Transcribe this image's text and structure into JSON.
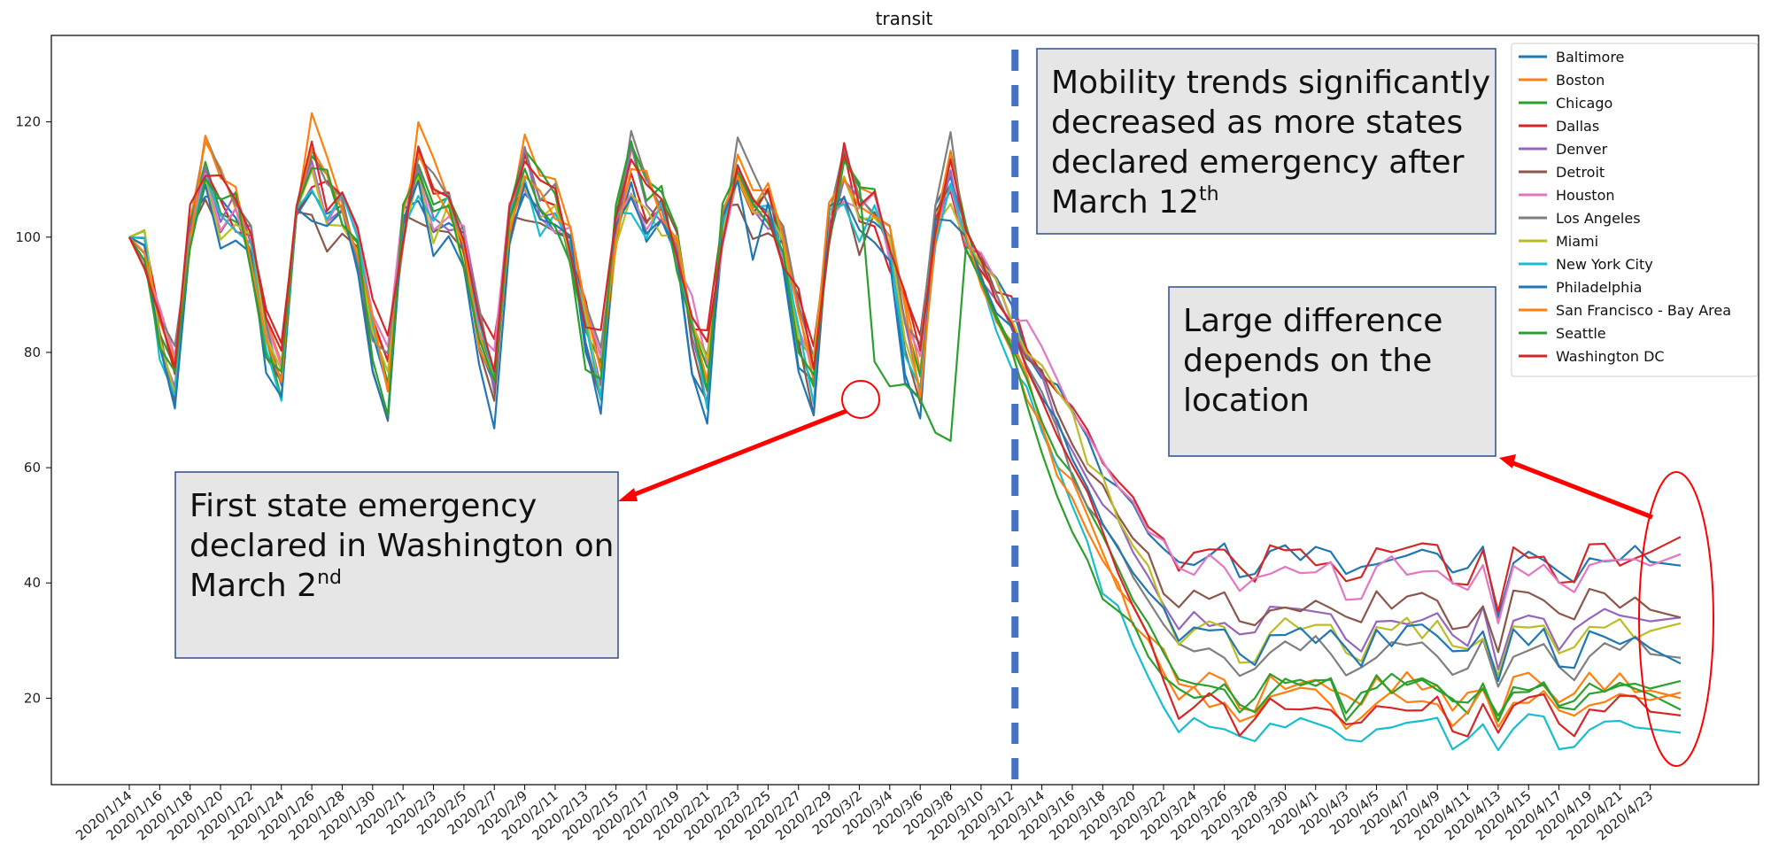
{
  "chart_data": {
    "type": "line",
    "title": "transit",
    "xlabel": "",
    "ylabel": "",
    "ylim": [
      5,
      135
    ],
    "yticks": [
      20,
      40,
      60,
      80,
      100,
      120
    ],
    "legend_position": "top-right",
    "grid": false,
    "x": [
      "2020/1/14",
      "2020/1/15",
      "2020/1/16",
      "2020/1/17",
      "2020/1/18",
      "2020/1/19",
      "2020/1/20",
      "2020/1/21",
      "2020/1/22",
      "2020/1/23",
      "2020/1/24",
      "2020/1/25",
      "2020/1/26",
      "2020/1/27",
      "2020/1/28",
      "2020/1/29",
      "2020/1/30",
      "2020/1/31",
      "2020/2/1",
      "2020/2/2",
      "2020/2/3",
      "2020/2/4",
      "2020/2/5",
      "2020/2/6",
      "2020/2/7",
      "2020/2/8",
      "2020/2/9",
      "2020/2/10",
      "2020/2/11",
      "2020/2/12",
      "2020/2/13",
      "2020/2/14",
      "2020/2/15",
      "2020/2/16",
      "2020/2/17",
      "2020/2/18",
      "2020/2/19",
      "2020/2/20",
      "2020/2/21",
      "2020/2/22",
      "2020/2/23",
      "2020/2/24",
      "2020/2/25",
      "2020/2/26",
      "2020/2/27",
      "2020/2/28",
      "2020/2/29",
      "2020/3/1",
      "2020/3/2",
      "2020/3/3",
      "2020/3/4",
      "2020/3/5",
      "2020/3/6",
      "2020/3/7",
      "2020/3/8",
      "2020/3/9",
      "2020/3/10",
      "2020/3/11",
      "2020/3/12",
      "2020/3/13",
      "2020/3/14",
      "2020/3/15",
      "2020/3/16",
      "2020/3/17",
      "2020/3/18",
      "2020/3/19",
      "2020/3/20",
      "2020/3/21",
      "2020/3/22",
      "2020/3/23",
      "2020/3/24",
      "2020/3/25",
      "2020/3/26",
      "2020/3/27",
      "2020/3/28",
      "2020/3/29",
      "2020/3/30",
      "2020/3/31",
      "2020/4/1",
      "2020/4/2",
      "2020/4/3",
      "2020/4/4",
      "2020/4/5",
      "2020/4/6",
      "2020/4/7",
      "2020/4/8",
      "2020/4/9",
      "2020/4/10",
      "2020/4/11",
      "2020/4/12",
      "2020/4/13",
      "2020/4/14",
      "2020/4/15",
      "2020/4/16",
      "2020/4/17",
      "2020/4/18",
      "2020/4/19",
      "2020/4/20",
      "2020/4/21",
      "2020/4/22",
      "2020/4/23",
      "2020/4/24",
      "2020/4/25"
    ],
    "tick_labels": [
      "2020/1/14",
      "2020/1/16",
      "2020/1/18",
      "2020/1/20",
      "2020/1/22",
      "2020/1/24",
      "2020/1/26",
      "2020/1/28",
      "2020/1/30",
      "2020/2/1",
      "2020/2/3",
      "2020/2/5",
      "2020/2/7",
      "2020/2/9",
      "2020/2/11",
      "2020/2/13",
      "2020/2/15",
      "2020/2/17",
      "2020/2/19",
      "2020/2/21",
      "2020/2/23",
      "2020/2/25",
      "2020/2/27",
      "2020/2/29",
      "2020/3/2",
      "2020/3/4",
      "2020/3/6",
      "2020/3/8",
      "2020/3/10",
      "2020/3/12",
      "2020/3/14",
      "2020/3/16",
      "2020/3/18",
      "2020/3/20",
      "2020/3/22",
      "2020/3/24",
      "2020/3/26",
      "2020/3/28",
      "2020/3/30",
      "2020/4/1",
      "2020/4/3",
      "2020/4/5",
      "2020/4/7",
      "2020/4/9",
      "2020/4/11",
      "2020/4/13",
      "2020/4/15",
      "2020/4/17",
      "2020/4/19",
      "2020/4/21",
      "2020/4/23"
    ],
    "series": [
      {
        "name": "Baltimore",
        "color": "#1f77b4",
        "start": 100,
        "low": 72,
        "high": 113,
        "p1": 63,
        "mid": 44,
        "dip": 34,
        "end": 43
      },
      {
        "name": "Boston",
        "color": "#ff7f0e",
        "start": 100,
        "low": 78,
        "high": 122,
        "p1": 50,
        "mid": 22,
        "dip": 16,
        "end": 20
      },
      {
        "name": "Chicago",
        "color": "#2ca02c",
        "start": 100,
        "low": 75,
        "high": 118,
        "p1": 52,
        "mid": 22,
        "dip": 16,
        "end": 18
      },
      {
        "name": "Dallas",
        "color": "#d62728",
        "start": 100,
        "low": 80,
        "high": 116,
        "p1": 66,
        "mid": 44,
        "dip": 35,
        "end": 48
      },
      {
        "name": "Denver",
        "color": "#9467bd",
        "start": 100,
        "low": 76,
        "high": 116,
        "p1": 58,
        "mid": 33,
        "dip": 25,
        "end": 34
      },
      {
        "name": "Detroit",
        "color": "#8c564b",
        "start": 100,
        "low": 72,
        "high": 110,
        "p1": 60,
        "mid": 36,
        "dip": 28,
        "end": 34
      },
      {
        "name": "Houston",
        "color": "#e377c2",
        "start": 100,
        "low": 78,
        "high": 114,
        "p1": 67,
        "mid": 42,
        "dip": 33,
        "end": 45
      },
      {
        "name": "Los Angeles",
        "color": "#7f7f7f",
        "start": 100,
        "low": 78,
        "high": 120,
        "p1": 55,
        "mid": 28,
        "dip": 22,
        "end": 27
      },
      {
        "name": "Miami",
        "color": "#bcbd22",
        "start": 100,
        "low": 76,
        "high": 112,
        "p1": 63,
        "mid": 31,
        "dip": 24,
        "end": 33
      },
      {
        "name": "New York City",
        "color": "#17becf",
        "start": 100,
        "low": 74,
        "high": 112,
        "p1": 45,
        "mid": 15,
        "dip": 11,
        "end": 14
      },
      {
        "name": "Philadelphia",
        "color": "#1f77b4",
        "start": 100,
        "low": 70,
        "high": 110,
        "p1": 55,
        "mid": 30,
        "dip": 23,
        "end": 26
      },
      {
        "name": "San Francisco - Bay Area",
        "color": "#ff7f0e",
        "start": 100,
        "low": 76,
        "high": 118,
        "p1": 48,
        "mid": 19,
        "dip": 15,
        "end": 21
      },
      {
        "name": "Seattle",
        "color": "#2ca02c",
        "start": 100,
        "low": 73,
        "high": 118,
        "p1": 42,
        "mid": 21,
        "dip": 17,
        "end": 23
      },
      {
        "name": "Washington DC",
        "color": "#d62728",
        "start": 100,
        "low": 80,
        "high": 118,
        "p1": 56,
        "mid": 18,
        "dip": 14,
        "end": 17
      }
    ],
    "vline": {
      "x": "2020/3/12",
      "color": "#4472c4"
    },
    "annotations": [
      {
        "id": "note_march12",
        "lines": [
          "Mobility trends significantly",
          "decreased as more states",
          "declared emergency after",
          "March 12"
        ],
        "sup": "th"
      },
      {
        "id": "note_location",
        "lines": [
          "Large difference",
          "depends on the",
          "location"
        ],
        "sup": ""
      },
      {
        "id": "note_washington",
        "lines": [
          "First state emergency",
          "declared in Washington on",
          "March 2"
        ],
        "sup": "nd"
      }
    ],
    "highlight_color": "#ff0000"
  }
}
